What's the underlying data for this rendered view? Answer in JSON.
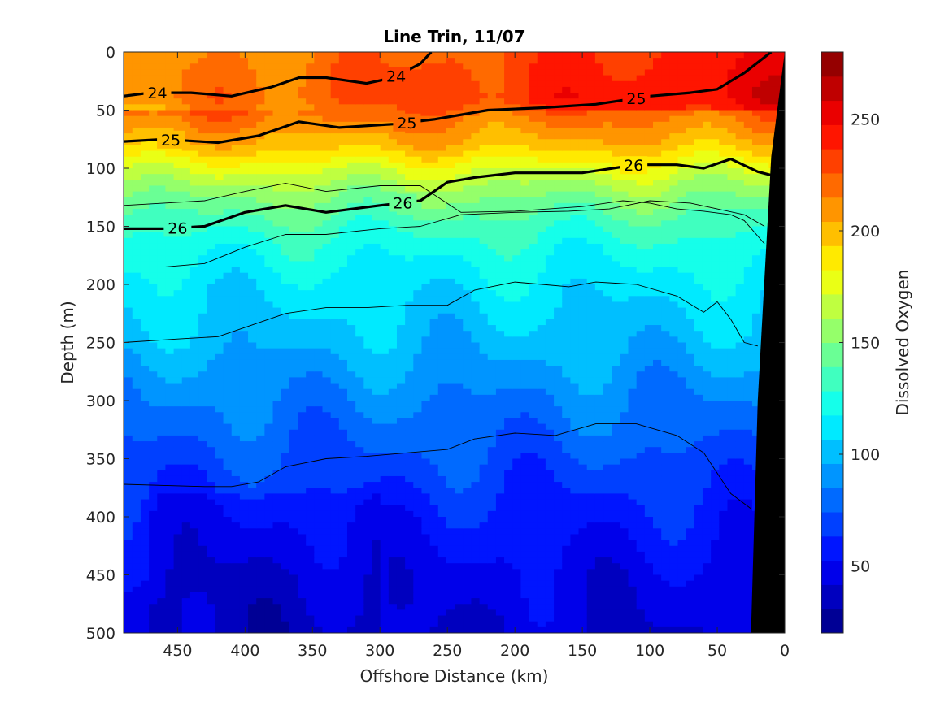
{
  "chart_data": {
    "type": "heatmap",
    "title": "Line Trin, 11/07",
    "xlabel": "Offshore Distance (km)",
    "ylabel": "Depth (m)",
    "colorbar_label": "Dissolved Oxygen",
    "xlim": [
      490,
      0
    ],
    "ylim": [
      0,
      500
    ],
    "x_ticks": [
      450,
      400,
      350,
      300,
      250,
      200,
      150,
      100,
      50,
      0
    ],
    "y_ticks": [
      0,
      50,
      100,
      150,
      200,
      250,
      300,
      350,
      400,
      450,
      500
    ],
    "colorbar_range": [
      20,
      280
    ],
    "colorbar_ticks": [
      50,
      100,
      150,
      200,
      250
    ],
    "colormap": "jet",
    "oxygen_profiles": [
      {
        "depth": 0,
        "value": 225
      },
      {
        "depth": 40,
        "value": 232
      },
      {
        "depth": 60,
        "value": 215
      },
      {
        "depth": 80,
        "value": 200
      },
      {
        "depth": 100,
        "value": 175
      },
      {
        "depth": 120,
        "value": 155
      },
      {
        "depth": 145,
        "value": 135
      },
      {
        "depth": 170,
        "value": 122
      },
      {
        "depth": 200,
        "value": 112
      },
      {
        "depth": 250,
        "value": 100
      },
      {
        "depth": 300,
        "value": 85
      },
      {
        "depth": 350,
        "value": 72
      },
      {
        "depth": 400,
        "value": 58
      },
      {
        "depth": 450,
        "value": 48
      },
      {
        "depth": 500,
        "value": 42
      }
    ],
    "density_contours": [
      {
        "label": "24",
        "bold": true,
        "x": [
          490,
          470,
          440,
          410,
          380,
          360,
          340,
          310,
          290,
          270,
          262
        ],
        "y": [
          38,
          35,
          35,
          38,
          30,
          22,
          22,
          27,
          22,
          10,
          0
        ]
      },
      {
        "label": "25",
        "bold": true,
        "x": [
          490,
          460,
          420,
          390,
          360,
          330,
          290,
          260,
          220,
          180,
          140,
          100,
          70,
          50,
          30,
          10
        ],
        "y": [
          77,
          75,
          78,
          72,
          60,
          65,
          62,
          58,
          50,
          48,
          45,
          38,
          35,
          32,
          18,
          0
        ]
      },
      {
        "label": "26",
        "bold": true,
        "x": [
          490,
          460,
          430,
          400,
          370,
          340,
          300,
          270,
          250,
          230,
          200,
          150,
          110,
          80,
          60,
          40,
          20,
          10
        ],
        "y": [
          152,
          152,
          150,
          138,
          132,
          138,
          132,
          128,
          112,
          108,
          104,
          104,
          97,
          97,
          100,
          92,
          103,
          106
        ]
      },
      {
        "label": "",
        "bold": false,
        "x": [
          490,
          460,
          430,
          400,
          370,
          340,
          300,
          270,
          240,
          200,
          150,
          120,
          100,
          80,
          60,
          40,
          30,
          15
        ],
        "y": [
          132,
          130,
          128,
          120,
          113,
          120,
          115,
          115,
          138,
          137,
          133,
          128,
          130,
          135,
          137,
          140,
          145,
          165
        ]
      },
      {
        "label": "",
        "bold": false,
        "x": [
          490,
          460,
          430,
          400,
          370,
          340,
          300,
          270,
          240,
          200,
          160,
          130,
          100,
          70,
          50,
          30,
          15
        ],
        "y": [
          185,
          185,
          182,
          168,
          157,
          157,
          152,
          150,
          140,
          138,
          137,
          135,
          128,
          130,
          135,
          140,
          150
        ]
      },
      {
        "label": "",
        "bold": false,
        "x": [
          490,
          450,
          420,
          400,
          370,
          340,
          310,
          280,
          250,
          230,
          200,
          180,
          160,
          140,
          110,
          80,
          60,
          50,
          40,
          30,
          20
        ],
        "y": [
          250,
          247,
          245,
          237,
          225,
          220,
          220,
          218,
          218,
          205,
          198,
          200,
          202,
          198,
          200,
          210,
          224,
          215,
          230,
          250,
          253
        ]
      },
      {
        "label": "",
        "bold": false,
        "x": [
          490,
          460,
          430,
          410,
          390,
          370,
          340,
          310,
          280,
          250,
          230,
          200,
          170,
          140,
          110,
          80,
          60,
          40,
          25
        ],
        "y": [
          372,
          373,
          374,
          374,
          370,
          357,
          350,
          348,
          345,
          342,
          333,
          328,
          330,
          320,
          320,
          330,
          345,
          380,
          393
        ]
      }
    ],
    "bathymetry_x_at_depth": [
      {
        "depth": 0,
        "x": 0
      },
      {
        "depth": 90,
        "x": 10
      },
      {
        "depth": 300,
        "x": 20
      },
      {
        "depth": 500,
        "x": 25
      }
    ]
  }
}
